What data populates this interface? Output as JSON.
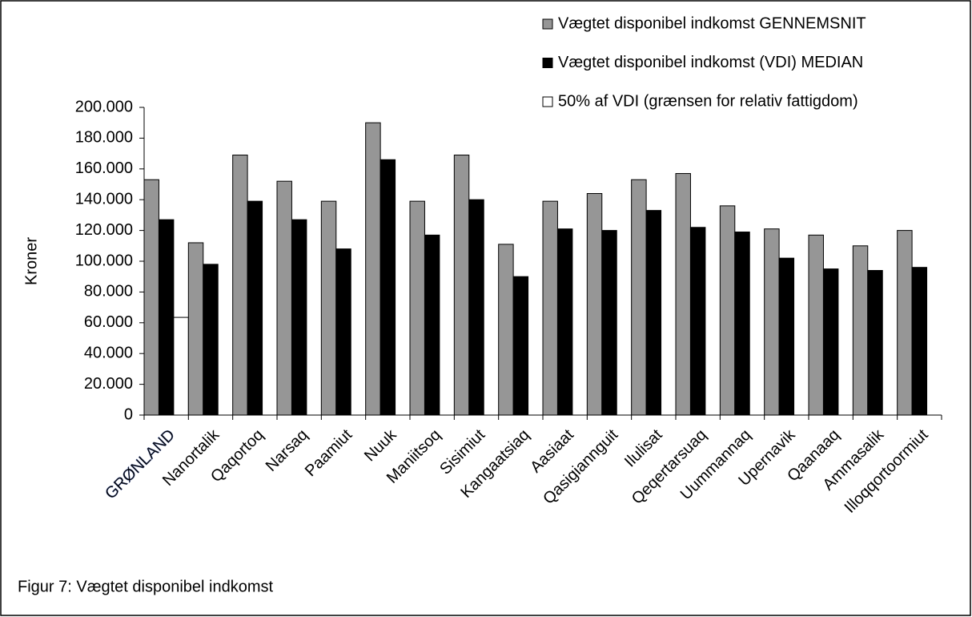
{
  "chart_data": {
    "type": "bar",
    "y_label": "Kroner",
    "caption": "Figur 7: Vægtet disponibel indkomst",
    "categories": [
      "GRØNLAND",
      "Nanortalik",
      "Qaqortoq",
      "Narsaq",
      "Paamiut",
      "Nuuk",
      "Maniitsoq",
      "Sisimiut",
      "Kangaatsiaq",
      "Aasiaat",
      "Qasigiannguit",
      "Ilulisat",
      "Qeqertarsuaq",
      "Uummannaq",
      "Upernavik",
      "Qaanaaq",
      "Ammasalik",
      "Illoqqortoormiut"
    ],
    "series": [
      {
        "name": "Vægtet disponibel indkomst GENNEMSNIT",
        "color": "#969696",
        "values": [
          153000,
          112000,
          169000,
          152000,
          139000,
          190000,
          139000,
          169000,
          111000,
          139000,
          144000,
          153000,
          157000,
          136000,
          121000,
          117000,
          110000,
          120000
        ]
      },
      {
        "name": "Vægtet disponibel indkomst (VDI) MEDIAN",
        "color": "#000000",
        "values": [
          127000,
          98000,
          139000,
          127000,
          108000,
          166000,
          117000,
          140000,
          90000,
          121000,
          120000,
          133000,
          122000,
          119000,
          102000,
          95000,
          94000,
          96000
        ]
      },
      {
        "name": "50% af VDI (grænsen for relativ fattigdom)",
        "color": "#ffffff",
        "values": [
          63500,
          null,
          null,
          null,
          null,
          null,
          null,
          null,
          null,
          null,
          null,
          null,
          null,
          null,
          null,
          null,
          null,
          null
        ]
      }
    ],
    "ylim": [
      0,
      200000
    ],
    "yticks": [
      0,
      {
        "value": 20000,
        "label": "20.000"
      },
      {
        "value": 40000,
        "label": "40.000"
      },
      {
        "value": 60000,
        "label": "60.000"
      },
      {
        "value": 80000,
        "label": "80.000"
      },
      {
        "value": 100000,
        "label": "100.000"
      },
      {
        "value": 120000,
        "label": "120.000"
      },
      {
        "value": 140000,
        "label": "140.000"
      },
      {
        "value": 160000,
        "label": "160.000"
      },
      {
        "value": 180000,
        "label": "180.000"
      },
      {
        "value": 200000,
        "label": "200.000"
      }
    ],
    "grid": false,
    "legend": "top-right"
  }
}
